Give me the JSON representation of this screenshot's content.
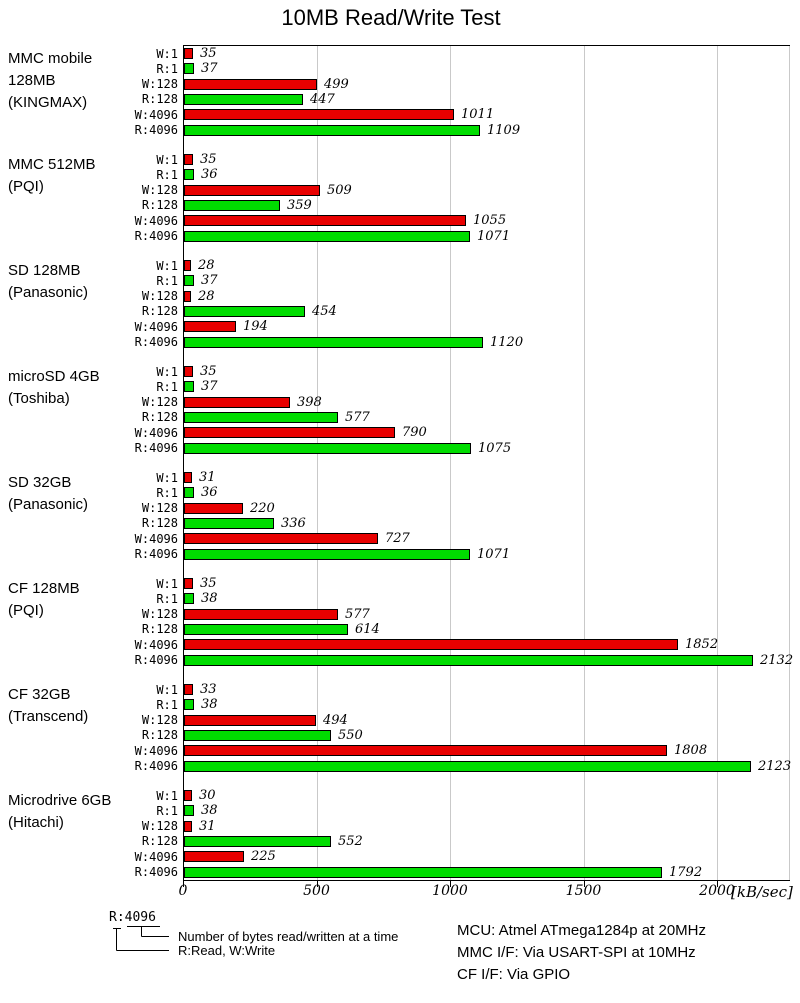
{
  "title": "10MB Read/Write Test",
  "chart_data": {
    "type": "bar",
    "orientation": "horizontal",
    "title": "10MB Read/Write Test",
    "xlabel_unit": "[kB/sec]",
    "x_ticks": [
      0,
      500,
      1000,
      1500,
      2000
    ],
    "xlim": [
      0,
      2270
    ],
    "grid": "vertical-gray",
    "bar_labels": [
      "W:1",
      "R:1",
      "W:128",
      "R:128",
      "W:4096",
      "R:4096"
    ],
    "colors": {
      "write": "#e80000",
      "read": "#00dd00"
    },
    "groups": [
      {
        "name_lines": [
          "MMC mobile",
          "128MB",
          "(KINGMAX)"
        ],
        "values": [
          35,
          37,
          499,
          447,
          1011,
          1109
        ]
      },
      {
        "name_lines": [
          "MMC 512MB",
          "(PQI)"
        ],
        "values": [
          35,
          36,
          509,
          359,
          1055,
          1071
        ]
      },
      {
        "name_lines": [
          "SD 128MB",
          "(Panasonic)"
        ],
        "values": [
          28,
          37,
          28,
          454,
          194,
          1120
        ]
      },
      {
        "name_lines": [
          "microSD 4GB",
          "(Toshiba)"
        ],
        "values": [
          35,
          37,
          398,
          577,
          790,
          1075
        ]
      },
      {
        "name_lines": [
          "SD 32GB",
          "(Panasonic)"
        ],
        "values": [
          31,
          36,
          220,
          336,
          727,
          1071
        ]
      },
      {
        "name_lines": [
          "CF 128MB",
          "(PQI)"
        ],
        "values": [
          35,
          38,
          577,
          614,
          1852,
          2132
        ]
      },
      {
        "name_lines": [
          "CF 32GB",
          "(Transcend)"
        ],
        "values": [
          33,
          38,
          494,
          550,
          1808,
          2123
        ]
      },
      {
        "name_lines": [
          "Microdrive 6GB",
          "(Hitachi)"
        ],
        "values": [
          30,
          38,
          31,
          552,
          225,
          1792
        ]
      }
    ]
  },
  "legend": {
    "sample_label": "R:4096",
    "note_bytes": "Number of bytes read/written at a time",
    "note_readwrite": "R:Read, W:Write"
  },
  "footer_info": {
    "lines": [
      "MCU: Atmel ATmega1284p at 20MHz",
      "MMC I/F: Via USART-SPI at 10MHz",
      "CF I/F: Via GPIO"
    ]
  }
}
